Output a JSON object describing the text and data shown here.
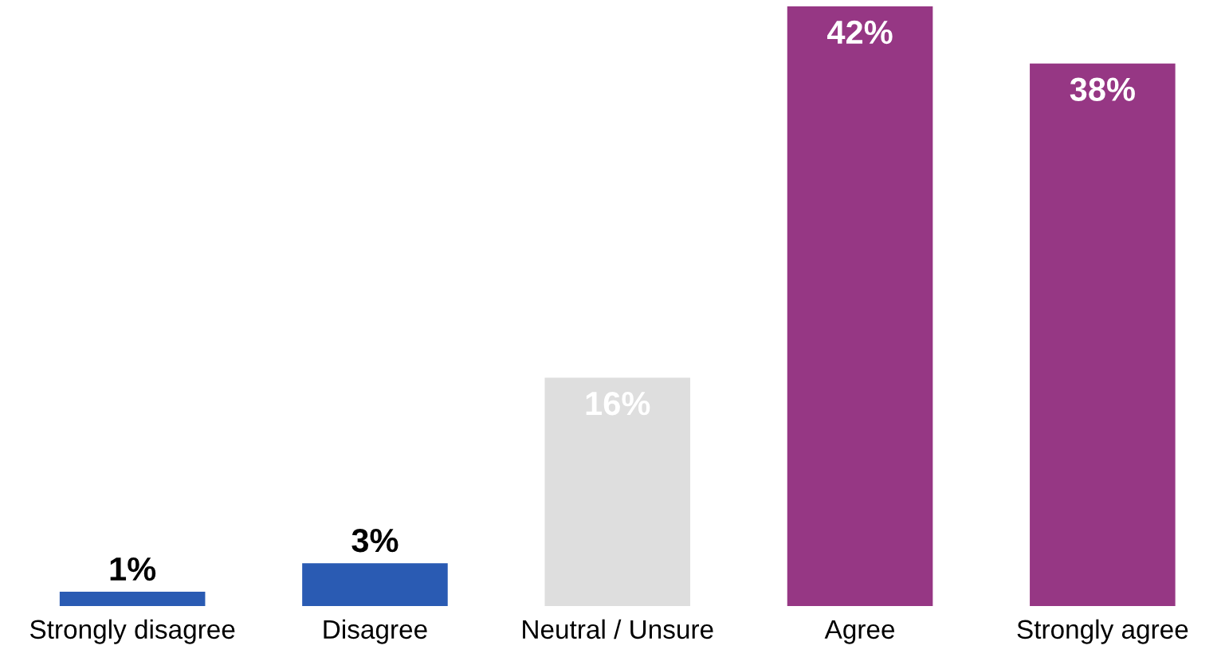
{
  "chart_data": {
    "type": "bar",
    "categories": [
      "Strongly disagree",
      "Disagree",
      "Neutral / Unsure",
      "Agree",
      "Strongly agree"
    ],
    "values": [
      1,
      3,
      16,
      42,
      38
    ],
    "colors": [
      "#2a5bb3",
      "#2a5bb3",
      "#dedede",
      "#963784",
      "#963784"
    ],
    "value_labels": [
      "1%",
      "3%",
      "16%",
      "42%",
      "38%"
    ],
    "grid": false,
    "legend": false
  }
}
